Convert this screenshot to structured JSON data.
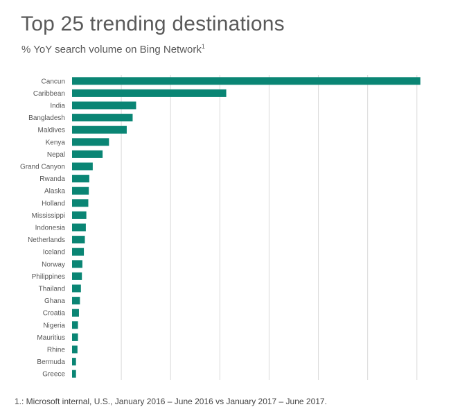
{
  "header": {
    "title": "Top 25 trending destinations",
    "subtitle": "% YoY search volume on Bing Network",
    "subtitle_superscript": "1"
  },
  "footnote": "1.: Microsoft internal, U.S., January 2016 – June 2016 vs January 2017 – June 2017.",
  "colors": {
    "bar": "#0a8574",
    "grid": "#d9d9d9"
  },
  "chart_data": {
    "type": "bar",
    "orientation": "horizontal",
    "title": "Top 25 trending destinations",
    "subtitle": "% YoY search volume on Bing Network",
    "categories": [
      "Cancun",
      "Caribbean",
      "India",
      "Bangladesh",
      "Maldives",
      "Kenya",
      "Nepal",
      "Grand Canyon",
      "Rwanda",
      "Alaska",
      "Holland",
      "Mississippi",
      "Indonesia",
      "Netherlands",
      "Iceland",
      "Norway",
      "Philippines",
      "Thailand",
      "Ghana",
      "Croatia",
      "Nigeria",
      "Mauritius",
      "Rhine",
      "Bermuda",
      "Greece"
    ],
    "values": [
      707,
      313,
      130,
      123,
      111,
      75,
      62,
      42,
      35,
      34,
      33,
      29,
      28,
      26,
      24,
      21,
      20,
      18,
      16,
      14,
      12,
      12,
      11,
      8,
      8
    ],
    "xlim": [
      0,
      720
    ],
    "gridlines_x": [
      100,
      200,
      300,
      400,
      500,
      600,
      700
    ],
    "tick_labels_shown": false,
    "grid": true,
    "legend": "none"
  }
}
